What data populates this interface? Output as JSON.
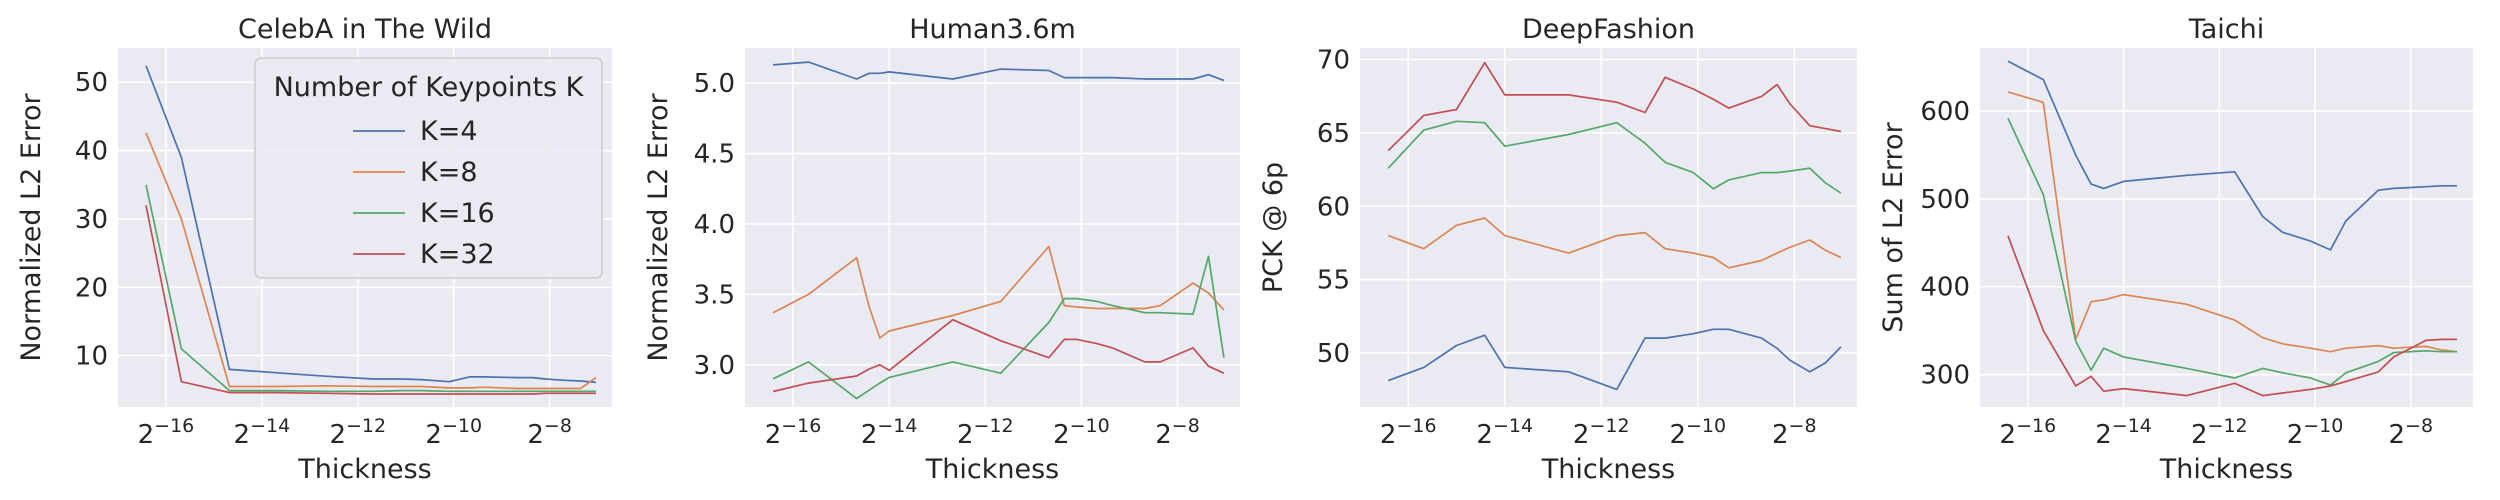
{
  "figure": {
    "xlabel": "Thickness",
    "legend_title": "Number of Keypoints K",
    "series_names": [
      "K=4",
      "K=8",
      "K=16",
      "K=32"
    ],
    "series_colors": [
      "#4c72b0",
      "#dd8452",
      "#55a868",
      "#c44e52"
    ],
    "background": "#eaeaf2",
    "grid_color": "#ffffff"
  },
  "chart_data": [
    {
      "type": "line",
      "title": "CelebA in The Wild",
      "xlabel": "Thickness",
      "ylabel": "Normalized L2 Error",
      "x_scale": "log2",
      "x": [
        1.144e-05,
        1.907e-05,
        3.815e-05,
        7.629e-05,
        0.0001526,
        0.0003052,
        0.0004578,
        0.0006104,
        0.0009155,
        0.001221,
        0.001526,
        0.002441,
        0.003052,
        0.003662,
        0.004883,
        0.006104,
        0.007629
      ],
      "xticks": [
        -16,
        -14,
        -12,
        -10,
        -8
      ],
      "xtick_labels": [
        "2−16",
        "2−14",
        "2−12",
        "2−10",
        "2−8"
      ],
      "ylim": [
        2.5,
        55
      ],
      "yticks": [
        10,
        20,
        30,
        40,
        50
      ],
      "grid": true,
      "legend": "top-right",
      "series": [
        {
          "name": "K=4",
          "values": [
            52.4,
            39.0,
            8.0,
            7.5,
            7.0,
            6.6,
            6.6,
            6.5,
            6.2,
            6.9,
            6.9,
            6.8,
            6.8,
            6.6,
            6.4,
            6.3,
            6.1
          ]
        },
        {
          "name": "K=8",
          "values": [
            42.6,
            30.0,
            5.5,
            5.5,
            5.6,
            5.5,
            5.5,
            5.5,
            5.3,
            5.3,
            5.4,
            5.2,
            5.2,
            5.2,
            5.2,
            5.2,
            6.8
          ]
        },
        {
          "name": "K=16",
          "values": [
            35.0,
            11.0,
            4.9,
            4.9,
            4.8,
            4.8,
            4.9,
            4.9,
            4.8,
            4.8,
            4.8,
            4.8,
            4.8,
            4.8,
            4.8,
            4.8,
            4.8
          ]
        },
        {
          "name": "K=32",
          "values": [
            32.0,
            6.2,
            4.6,
            4.6,
            4.5,
            4.4,
            4.4,
            4.4,
            4.4,
            4.4,
            4.4,
            4.4,
            4.4,
            4.5,
            4.5,
            4.5,
            4.5
          ]
        }
      ]
    },
    {
      "type": "line",
      "title": "Human3.6m",
      "xlabel": "Thickness",
      "ylabel": "Normalized L2 Error",
      "x_scale": "log2",
      "x": [
        1.144e-05,
        1.907e-05,
        3.815e-05,
        4.578e-05,
        5.341e-05,
        6.104e-05,
        0.0001526,
        0.0003052,
        0.0006104,
        0.0007629,
        0.0009155,
        0.001221,
        0.001526,
        0.002441,
        0.003052,
        0.004883,
        0.006104,
        0.007629
      ],
      "xticks": [
        -16,
        -14,
        -12,
        -10,
        -8
      ],
      "xtick_labels": [
        "2−16",
        "2−14",
        "2−12",
        "2−10",
        "2−8"
      ],
      "ylim": [
        2.7,
        5.25
      ],
      "yticks": [
        3.0,
        3.5,
        4.0,
        4.5,
        5.0
      ],
      "ytick_labels": [
        "3.0",
        "3.5",
        "4.0",
        "4.5",
        "5.0"
      ],
      "grid": true,
      "series": [
        {
          "name": "K=4",
          "values": [
            5.13,
            5.15,
            5.03,
            5.07,
            5.07,
            5.08,
            5.03,
            5.1,
            5.09,
            5.04,
            5.04,
            5.04,
            5.04,
            5.03,
            5.03,
            5.03,
            5.06,
            5.02
          ]
        },
        {
          "name": "K=8",
          "values": [
            3.37,
            3.5,
            3.76,
            3.41,
            3.19,
            3.24,
            3.35,
            3.45,
            3.84,
            3.42,
            3.41,
            3.4,
            3.4,
            3.4,
            3.42,
            3.58,
            3.51,
            3.39
          ]
        },
        {
          "name": "K=16",
          "values": [
            2.9,
            3.02,
            2.76,
            2.82,
            2.87,
            2.91,
            3.02,
            2.94,
            3.3,
            3.47,
            3.47,
            3.45,
            3.42,
            3.37,
            3.37,
            3.36,
            3.77,
            3.05
          ]
        },
        {
          "name": "K=32",
          "values": [
            2.81,
            2.87,
            2.92,
            2.97,
            3.0,
            2.96,
            3.32,
            3.17,
            3.05,
            3.18,
            3.18,
            3.15,
            3.12,
            3.02,
            3.02,
            3.12,
            2.99,
            2.94
          ]
        }
      ]
    },
    {
      "type": "line",
      "title": "DeepFashion",
      "xlabel": "Thickness",
      "ylabel": "PCK @ 6p",
      "x_scale": "log2",
      "x": [
        1.144e-05,
        1.907e-05,
        3.052e-05,
        4.578e-05,
        6.104e-05,
        0.0001526,
        0.0003052,
        0.0004578,
        0.0006104,
        0.0009155,
        0.001221,
        0.001526,
        0.002441,
        0.003052,
        0.003662,
        0.004883,
        0.006104,
        0.007629
      ],
      "xticks": [
        -16,
        -14,
        -12,
        -10,
        -8
      ],
      "xtick_labels": [
        "2−16",
        "2−14",
        "2−12",
        "2−10",
        "2−8"
      ],
      "ylim": [
        46.3,
        70.8
      ],
      "yticks": [
        50,
        55,
        60,
        65,
        70
      ],
      "grid": true,
      "series": [
        {
          "name": "K=4",
          "values": [
            48.1,
            49.0,
            50.5,
            51.2,
            49.0,
            48.7,
            47.5,
            51.0,
            51.0,
            51.3,
            51.6,
            51.6,
            51.0,
            50.3,
            49.5,
            48.7,
            49.3,
            50.4
          ]
        },
        {
          "name": "K=8",
          "values": [
            58.0,
            57.1,
            58.7,
            59.2,
            58.0,
            56.8,
            58.0,
            58.2,
            57.1,
            56.8,
            56.5,
            55.8,
            56.3,
            56.8,
            57.2,
            57.7,
            57.0,
            56.5
          ]
        },
        {
          "name": "K=16",
          "values": [
            62.6,
            65.2,
            65.8,
            65.7,
            64.1,
            64.9,
            65.7,
            64.3,
            63.0,
            62.3,
            61.2,
            61.8,
            62.3,
            62.3,
            62.4,
            62.6,
            61.6,
            60.9
          ]
        },
        {
          "name": "K=32",
          "values": [
            63.8,
            66.2,
            66.6,
            69.8,
            67.6,
            67.6,
            67.1,
            66.4,
            68.8,
            68.0,
            67.3,
            66.7,
            67.5,
            68.3,
            67.0,
            65.5,
            65.3,
            65.1
          ]
        }
      ]
    },
    {
      "type": "line",
      "title": "Taichi",
      "xlabel": "Thickness",
      "ylabel": "Sum of L2 Error",
      "x_scale": "log2",
      "x": [
        1.144e-05,
        1.907e-05,
        3.052e-05,
        3.815e-05,
        4.578e-05,
        6.104e-05,
        0.0001526,
        0.0003052,
        0.0004578,
        0.0006104,
        0.0009155,
        0.001221,
        0.001526,
        0.002441,
        0.003052,
        0.004883,
        0.006104,
        0.007629
      ],
      "xticks": [
        -16,
        -14,
        -12,
        -10,
        -8
      ],
      "xtick_labels": [
        "2−16",
        "2−14",
        "2−12",
        "2−10",
        "2−8"
      ],
      "ylim": [
        263,
        672
      ],
      "yticks": [
        300,
        400,
        500,
        600
      ],
      "grid": true,
      "series": [
        {
          "name": "K=4",
          "values": [
            657,
            636,
            550,
            517,
            512,
            520,
            527,
            531,
            480,
            462,
            452,
            442,
            475,
            510,
            512,
            514,
            515,
            515
          ]
        },
        {
          "name": "K=8",
          "values": [
            622,
            610,
            340,
            383,
            385,
            391,
            380,
            362,
            342,
            335,
            330,
            326,
            330,
            333,
            330,
            332,
            328,
            326
          ]
        },
        {
          "name": "K=16",
          "values": [
            592,
            505,
            338,
            305,
            330,
            320,
            307,
            296,
            307,
            302,
            296,
            288,
            302,
            315,
            325,
            327,
            326,
            326
          ]
        },
        {
          "name": "K=32",
          "values": [
            458,
            350,
            287,
            298,
            281,
            284,
            276,
            290,
            276,
            279,
            283,
            287,
            292,
            303,
            320,
            339,
            340,
            340
          ]
        }
      ]
    }
  ]
}
